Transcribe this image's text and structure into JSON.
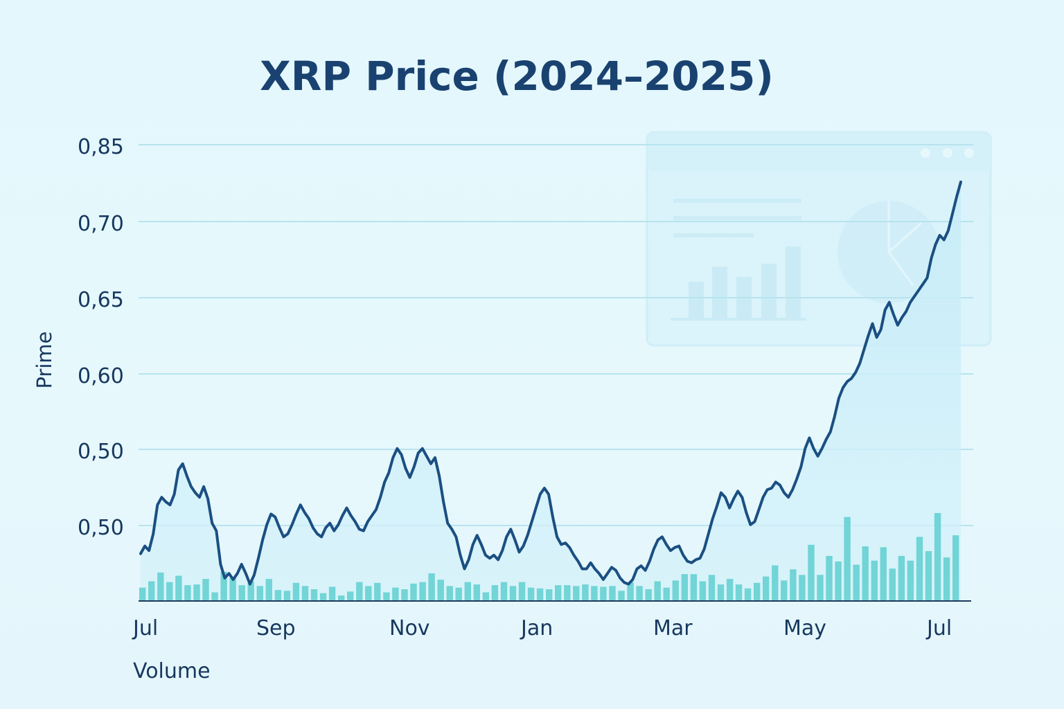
{
  "chart_data": {
    "type": "line",
    "title": "XRP Price (2024–2025)",
    "ylabel": "Prime",
    "xlabel": "Volume",
    "y_ticks": [
      "0,85",
      "0,70",
      "0,65",
      "0,60",
      "0,50",
      "0,50"
    ],
    "x_ticks": [
      "Jul",
      "Sep",
      "Nov",
      "Jan",
      "Mar",
      "May",
      "Jul"
    ],
    "grid": true,
    "colors": {
      "line": "#1b4f82",
      "area": "#bfe8f5",
      "bars": "#5fcfd0",
      "grid": "#b7e3ee",
      "text": "#17375e",
      "title": "#1a4270"
    },
    "price_series": {
      "name": "",
      "values": [
        0.482,
        0.487,
        0.484,
        0.495,
        0.514,
        0.519,
        0.516,
        0.514,
        0.521,
        0.537,
        0.541,
        0.533,
        0.526,
        0.522,
        0.519,
        0.526,
        0.518,
        0.502,
        0.497,
        0.475,
        0.466,
        0.469,
        0.465,
        0.469,
        0.475,
        0.469,
        0.462,
        0.468,
        0.479,
        0.491,
        0.501,
        0.508,
        0.506,
        0.499,
        0.493,
        0.495,
        0.501,
        0.508,
        0.514,
        0.509,
        0.505,
        0.499,
        0.495,
        0.493,
        0.499,
        0.502,
        0.497,
        0.501,
        0.507,
        0.512,
        0.507,
        0.503,
        0.498,
        0.497,
        0.503,
        0.507,
        0.511,
        0.519,
        0.529,
        0.535,
        0.545,
        0.551,
        0.547,
        0.538,
        0.532,
        0.539,
        0.548,
        0.551,
        0.546,
        0.541,
        0.545,
        0.533,
        0.516,
        0.502,
        0.498,
        0.493,
        0.481,
        0.472,
        0.478,
        0.488,
        0.494,
        0.488,
        0.481,
        0.479,
        0.481,
        0.478,
        0.484,
        0.493,
        0.498,
        0.491,
        0.483,
        0.487,
        0.494,
        0.503,
        0.512,
        0.521,
        0.525,
        0.521,
        0.506,
        0.493,
        0.488,
        0.489,
        0.486,
        0.481,
        0.477,
        0.472,
        0.472,
        0.476,
        0.472,
        0.469,
        0.465,
        0.469,
        0.473,
        0.471,
        0.466,
        0.463,
        0.462,
        0.465,
        0.472,
        0.474,
        0.471,
        0.477,
        0.485,
        0.491,
        0.493,
        0.488,
        0.484,
        0.486,
        0.487,
        0.481,
        0.477,
        0.476,
        0.478,
        0.479,
        0.485,
        0.495,
        0.505,
        0.513,
        0.522,
        0.519,
        0.512,
        0.518,
        0.523,
        0.519,
        0.509,
        0.501,
        0.503,
        0.511,
        0.519,
        0.524,
        0.525,
        0.529,
        0.527,
        0.522,
        0.519,
        0.524,
        0.531,
        0.539,
        0.551,
        0.558,
        0.551,
        0.546,
        0.551,
        0.557,
        0.562,
        0.572,
        0.584,
        0.591,
        0.595,
        0.597,
        0.601,
        0.607,
        0.616,
        0.625,
        0.633,
        0.624,
        0.629,
        0.642,
        0.647,
        0.639,
        0.632,
        0.637,
        0.641,
        0.647,
        0.651,
        0.655,
        0.659,
        0.663,
        0.676,
        0.685,
        0.691,
        0.688,
        0.694,
        0.705,
        0.716,
        0.726
      ]
    },
    "volume_series": {
      "name": "",
      "values": [
        0.16,
        0.24,
        0.35,
        0.23,
        0.31,
        0.19,
        0.2,
        0.27,
        0.1,
        0.36,
        0.28,
        0.19,
        0.24,
        0.18,
        0.27,
        0.13,
        0.12,
        0.22,
        0.18,
        0.14,
        0.09,
        0.17,
        0.06,
        0.11,
        0.23,
        0.18,
        0.22,
        0.1,
        0.16,
        0.14,
        0.21,
        0.23,
        0.34,
        0.26,
        0.18,
        0.16,
        0.23,
        0.2,
        0.1,
        0.19,
        0.23,
        0.18,
        0.23,
        0.16,
        0.15,
        0.14,
        0.19,
        0.19,
        0.18,
        0.2,
        0.18,
        0.17,
        0.18,
        0.12,
        0.23,
        0.18,
        0.14,
        0.24,
        0.16,
        0.25,
        0.33,
        0.33,
        0.24,
        0.32,
        0.2,
        0.27,
        0.2,
        0.15,
        0.22,
        0.3,
        0.44,
        0.25,
        0.39,
        0.32,
        0.7,
        0.32,
        0.56,
        0.49,
        1.05,
        0.45,
        0.68,
        0.5,
        0.67,
        0.4,
        0.56,
        0.5,
        0.8,
        0.62,
        1.1,
        0.54,
        0.82
      ]
    }
  }
}
